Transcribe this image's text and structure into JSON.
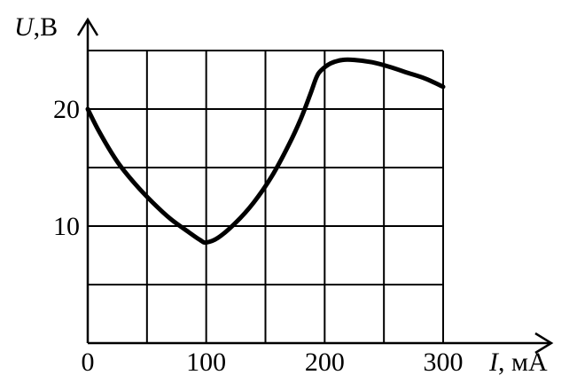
{
  "chart_data": {
    "type": "line",
    "title": "",
    "xlabel": {
      "symbol": "I",
      "unit": ", мА"
    },
    "ylabel": {
      "symbol": "U",
      "unit": ",В"
    },
    "xlim": [
      0,
      300
    ],
    "ylim": [
      0,
      25
    ],
    "grid": true,
    "grid_x_step": 50,
    "grid_y_step": 5,
    "x_ticks": [
      0,
      100,
      200,
      300
    ],
    "x_tick_labels": [
      "0",
      "100",
      "200",
      "300"
    ],
    "y_ticks": [
      10,
      20
    ],
    "y_tick_labels": [
      "10",
      "20"
    ],
    "colors": {
      "line": "#000000",
      "grid": "#000000",
      "axis": "#000000"
    },
    "series": [
      {
        "x": [
          0,
          10,
          25,
          40,
          55,
          70,
          85,
          95,
          100,
          110,
          125,
          140,
          155,
          170,
          180,
          188,
          193,
          197,
          205,
          215,
          225,
          240,
          255,
          270,
          285,
          300
        ],
        "y": [
          20,
          18.0,
          15.5,
          13.6,
          12.0,
          10.6,
          9.5,
          8.8,
          8.6,
          9.0,
          10.3,
          12.0,
          14.2,
          17.0,
          19.2,
          21.3,
          22.7,
          23.3,
          23.9,
          24.2,
          24.2,
          24.0,
          23.6,
          23.1,
          22.6,
          21.9
        ]
      }
    ]
  }
}
